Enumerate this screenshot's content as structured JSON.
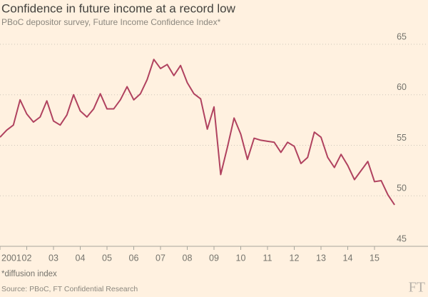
{
  "chart_data": {
    "type": "line",
    "title": "Confidence in future income at a record low",
    "subtitle": "PBoC depositor survey, Future Income Confidence Index*",
    "note": "*diffusion index",
    "source": "Source: PBoC, FT Confidential Research",
    "logo": "FT",
    "x": [
      2001,
      2001.25,
      2001.5,
      2001.75,
      2002,
      2002.25,
      2002.5,
      2002.75,
      2003,
      2003.25,
      2003.5,
      2003.75,
      2004,
      2004.25,
      2004.5,
      2004.75,
      2005,
      2005.25,
      2005.5,
      2005.75,
      2006,
      2006.25,
      2006.5,
      2006.75,
      2007,
      2007.25,
      2007.5,
      2007.75,
      2008,
      2008.25,
      2008.5,
      2008.75,
      2009,
      2009.25,
      2009.5,
      2009.75,
      2010,
      2010.25,
      2010.5,
      2010.75,
      2011,
      2011.25,
      2011.5,
      2011.75,
      2012,
      2012.25,
      2012.5,
      2012.75,
      2013,
      2013.25,
      2013.5,
      2013.75,
      2014,
      2014.25,
      2014.5,
      2014.75,
      2015,
      2015.25,
      2015.5,
      2015.75
    ],
    "series": [
      {
        "name": "Future Income Confidence Index",
        "color": "#b0425f",
        "values": [
          55.8,
          56.5,
          57.0,
          59.5,
          58.1,
          57.3,
          57.8,
          59.4,
          57.4,
          57.0,
          58.0,
          60.0,
          58.4,
          57.8,
          58.6,
          60.1,
          58.6,
          58.6,
          59.5,
          60.8,
          59.5,
          60.1,
          61.5,
          63.5,
          62.6,
          63.0,
          61.9,
          62.9,
          61.2,
          60.1,
          59.6,
          56.6,
          58.8,
          52.1,
          54.8,
          57.7,
          56.1,
          53.6,
          55.7,
          55.5,
          55.4,
          55.3,
          54.3,
          55.3,
          54.9,
          53.2,
          53.8,
          56.3,
          55.8,
          53.8,
          52.8,
          54.1,
          53.0,
          51.6,
          52.5,
          53.4,
          51.4,
          51.5,
          50.1,
          49.1
        ]
      }
    ],
    "xlim": [
      2001,
      2017
    ],
    "xticks": [
      {
        "value": 2001,
        "label": "2001"
      },
      {
        "value": 2002,
        "label": "02"
      },
      {
        "value": 2003,
        "label": "03"
      },
      {
        "value": 2004,
        "label": "04"
      },
      {
        "value": 2005,
        "label": "05"
      },
      {
        "value": 2006,
        "label": "06"
      },
      {
        "value": 2007,
        "label": "07"
      },
      {
        "value": 2008,
        "label": "08"
      },
      {
        "value": 2009,
        "label": "09"
      },
      {
        "value": 2010,
        "label": "10"
      },
      {
        "value": 2011,
        "label": "11"
      },
      {
        "value": 2012,
        "label": "12"
      },
      {
        "value": 2013,
        "label": "13"
      },
      {
        "value": 2014,
        "label": "14"
      },
      {
        "value": 2015,
        "label": "15"
      }
    ],
    "ylim": [
      45,
      65
    ],
    "yticks": [
      45,
      50,
      55,
      60,
      65
    ],
    "grid": true
  }
}
